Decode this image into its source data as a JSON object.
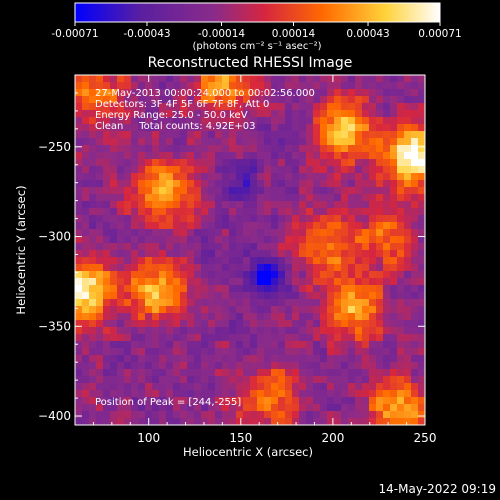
{
  "chart_data": {
    "type": "heatmap",
    "title": "Reconstructed RHESSI Image",
    "xlabel": "Heliocentric X (arcsec)",
    "ylabel": "Heliocentric Y (arcsec)",
    "xlim": [
      60,
      250
    ],
    "ylim": [
      -405,
      -210
    ],
    "xticks": [
      100,
      150,
      200,
      250
    ],
    "yticks": [
      -250,
      -300,
      -350,
      -400
    ],
    "colorbar": {
      "range": [
        -0.00071,
        0.00071
      ],
      "ticks": [
        "-0.00071",
        "-0.00043",
        "-0.00014",
        "0.00014",
        "0.00043",
        "0.00071"
      ],
      "label": "(photons cm⁻² s⁻¹ asec⁻²)",
      "colors": [
        "#0000ff",
        "#5a1fa0",
        "#8a2b8a",
        "#d6263f",
        "#ff6a00",
        "#ffd23a",
        "#ffffff"
      ]
    },
    "annotations": {
      "time": "27-May-2013 00:00:24.000 to 00:02:56.000",
      "detectors": "Detectors: 3F 4F 5F 6F 7F 8F, Att 0",
      "energy": "Energy Range: 25.0 - 50.0 keV",
      "clean": "Clean     Total counts: 4.92E+03",
      "peak": "Position of Peak = [244,-255]"
    },
    "hot_regions": [
      {
        "x": 244,
        "y": -255,
        "value": 0.00071
      },
      {
        "x": 63,
        "y": -330,
        "value": 0.00068
      },
      {
        "x": 108,
        "y": -275,
        "value": 0.00045
      },
      {
        "x": 205,
        "y": -240,
        "value": 0.00048
      },
      {
        "x": 210,
        "y": -340,
        "value": 0.0004
      },
      {
        "x": 235,
        "y": -395,
        "value": 0.00042
      },
      {
        "x": 105,
        "y": -330,
        "value": 0.00045
      },
      {
        "x": 70,
        "y": -220,
        "value": 0.0003
      },
      {
        "x": 140,
        "y": -215,
        "value": 0.00035
      },
      {
        "x": 165,
        "y": -390,
        "value": 0.0003
      },
      {
        "x": 195,
        "y": -305,
        "value": 0.0003
      },
      {
        "x": 230,
        "y": -300,
        "value": 0.00025
      }
    ],
    "cold_regions": [
      {
        "x": 165,
        "y": -322,
        "value": -0.00071
      },
      {
        "x": 150,
        "y": -270,
        "value": -0.00045
      },
      {
        "x": 180,
        "y": -240,
        "value": -0.00035
      },
      {
        "x": 130,
        "y": -310,
        "value": -0.0003
      }
    ]
  },
  "timestamp": "14-May-2022 09:19"
}
